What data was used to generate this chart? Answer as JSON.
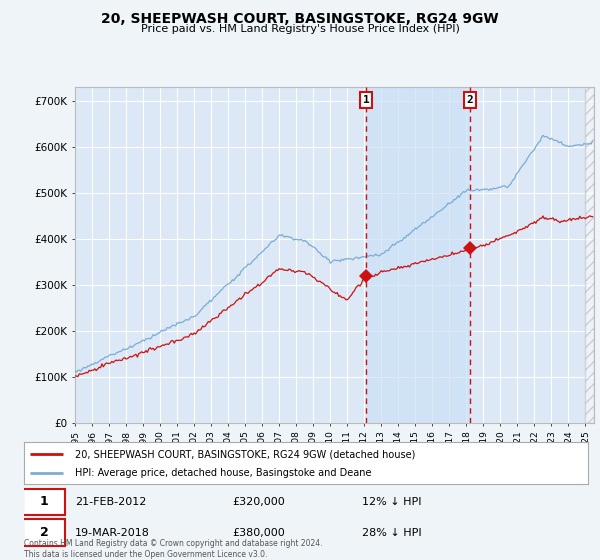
{
  "title": "20, SHEEPWASH COURT, BASINGSTOKE, RG24 9GW",
  "subtitle": "Price paid vs. HM Land Registry's House Price Index (HPI)",
  "ylabel_ticks": [
    "£0",
    "£100K",
    "£200K",
    "£300K",
    "£400K",
    "£500K",
    "£600K",
    "£700K"
  ],
  "ytick_values": [
    0,
    100000,
    200000,
    300000,
    400000,
    500000,
    600000,
    700000
  ],
  "ylim": [
    0,
    730000
  ],
  "xlim_start": 1995.0,
  "xlim_end": 2025.5,
  "background_color": "#eef4f8",
  "plot_bg_color": "#dce8f5",
  "grid_color": "#ffffff",
  "hpi_color": "#7aadd4",
  "price_color": "#cc1111",
  "sale1_date": "21-FEB-2012",
  "sale1_price": 320000,
  "sale1_pct": "12%",
  "sale1_year": 2012.12,
  "sale2_date": "19-MAR-2018",
  "sale2_price": 380000,
  "sale2_pct": "28%",
  "sale2_year": 2018.21,
  "shade_color": "#cce0f5",
  "legend_line1": "20, SHEEPWASH COURT, BASINGSTOKE, RG24 9GW (detached house)",
  "legend_line2": "HPI: Average price, detached house, Basingstoke and Deane",
  "footer": "Contains HM Land Registry data © Crown copyright and database right 2024.\nThis data is licensed under the Open Government Licence v3.0.",
  "xtick_years": [
    1995,
    1996,
    1997,
    1998,
    1999,
    2000,
    2001,
    2002,
    2003,
    2004,
    2005,
    2006,
    2007,
    2008,
    2009,
    2010,
    2011,
    2012,
    2013,
    2014,
    2015,
    2016,
    2017,
    2018,
    2019,
    2020,
    2021,
    2022,
    2023,
    2024,
    2025
  ]
}
